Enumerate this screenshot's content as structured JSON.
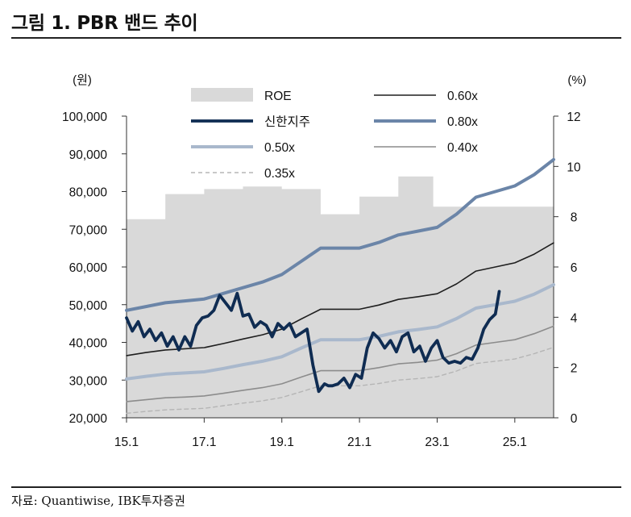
{
  "header": {
    "title": "그림 1. PBR 밴드 추이"
  },
  "footer": {
    "source": "자료: Quantiwise, IBK투자증권"
  },
  "chart_data": {
    "type": "line",
    "title": "그림 1. PBR 밴드 추이",
    "left_axis_unit": "(원)",
    "right_axis_unit": "(%)",
    "ylim": [
      20000,
      100000
    ],
    "y2lim": [
      0,
      12
    ],
    "xlim": [
      2015.0,
      2026.0
    ],
    "x_tick_labels": [
      "15.1",
      "17.1",
      "19.1",
      "21.1",
      "23.1",
      "25.1"
    ],
    "x_tick_positions": [
      2015.0,
      2017.0,
      2019.0,
      2021.0,
      2023.0,
      2025.0
    ],
    "y_tick_labels": [
      "20,000",
      "30,000",
      "40,000",
      "50,000",
      "60,000",
      "70,000",
      "80,000",
      "90,000",
      "100,000"
    ],
    "y2_tick_labels": [
      "0",
      "2",
      "4",
      "6",
      "8",
      "10",
      "12"
    ],
    "legend": {
      "placement": "top",
      "entries": [
        {
          "label": "ROE",
          "key": "roe"
        },
        {
          "label": "0.60x",
          "key": "b060"
        },
        {
          "label": "신한지주",
          "key": "price"
        },
        {
          "label": "0.80x",
          "key": "b080"
        },
        {
          "label": "0.50x",
          "key": "b050"
        },
        {
          "label": "0.40x",
          "key": "b040"
        },
        {
          "label": "0.35x",
          "key": "b035"
        }
      ]
    },
    "series": [
      {
        "key": "roe",
        "name": "ROE",
        "type": "area",
        "axis": "right",
        "color": "#d9d9d9",
        "x": [
          2015.0,
          2016.0,
          2016.0,
          2017.0,
          2017.0,
          2018.0,
          2018.0,
          2019.0,
          2019.0,
          2020.0,
          2020.0,
          2021.0,
          2021.0,
          2022.0,
          2022.0,
          2022.9,
          2022.9,
          2026.0
        ],
        "y": [
          7.9,
          7.9,
          8.9,
          8.9,
          9.1,
          9.1,
          9.2,
          9.2,
          9.1,
          9.1,
          8.1,
          8.1,
          8.8,
          8.8,
          9.6,
          9.6,
          8.4,
          8.4
        ]
      },
      {
        "key": "b080",
        "name": "0.80x",
        "type": "line",
        "axis": "left",
        "color": "#6b85a8",
        "width": 4,
        "x": [
          2015.0,
          2015.5,
          2016.0,
          2016.5,
          2017.0,
          2017.5,
          2018.0,
          2018.5,
          2019.0,
          2019.5,
          2020.0,
          2020.5,
          2021.0,
          2021.5,
          2022.0,
          2022.5,
          2023.0,
          2023.5,
          2024.0,
          2024.5,
          2025.0,
          2025.5,
          2026.0
        ],
        "y": [
          48500,
          49500,
          50500,
          51000,
          51500,
          53000,
          54500,
          56000,
          58000,
          61500,
          65000,
          65000,
          65000,
          66500,
          68500,
          69500,
          70500,
          74000,
          78500,
          80000,
          81500,
          84500,
          88500
        ]
      },
      {
        "key": "b060",
        "name": "0.60x",
        "type": "line",
        "axis": "left",
        "color": "#1f1f1f",
        "width": 1.6,
        "x": [
          2015.0,
          2015.5,
          2016.0,
          2016.5,
          2017.0,
          2017.5,
          2018.0,
          2018.5,
          2019.0,
          2019.5,
          2020.0,
          2020.5,
          2021.0,
          2021.5,
          2022.0,
          2022.5,
          2023.0,
          2023.5,
          2024.0,
          2024.5,
          2025.0,
          2025.5,
          2026.0
        ],
        "y": [
          36500,
          37300,
          38000,
          38300,
          38600,
          39700,
          40900,
          42000,
          43500,
          46200,
          48800,
          48800,
          48800,
          49900,
          51400,
          52100,
          52900,
          55500,
          58900,
          60000,
          61100,
          63400,
          66400
        ]
      },
      {
        "key": "b050",
        "name": "0.50x",
        "type": "line",
        "axis": "left",
        "color": "#a9b8cc",
        "width": 4,
        "x": [
          2015.0,
          2015.5,
          2016.0,
          2016.5,
          2017.0,
          2017.5,
          2018.0,
          2018.5,
          2019.0,
          2019.5,
          2020.0,
          2020.5,
          2021.0,
          2021.5,
          2022.0,
          2022.5,
          2023.0,
          2023.5,
          2024.0,
          2024.5,
          2025.0,
          2025.5,
          2026.0
        ],
        "y": [
          30300,
          31000,
          31600,
          31900,
          32200,
          33100,
          34100,
          35000,
          36200,
          38500,
          40700,
          40700,
          40700,
          41600,
          42800,
          43400,
          44100,
          46300,
          49100,
          50000,
          50900,
          52800,
          55300
        ]
      },
      {
        "key": "b040",
        "name": "0.40x",
        "type": "line",
        "axis": "left",
        "color": "#8c8c8c",
        "width": 1.6,
        "x": [
          2015.0,
          2015.5,
          2016.0,
          2016.5,
          2017.0,
          2017.5,
          2018.0,
          2018.5,
          2019.0,
          2019.5,
          2020.0,
          2020.5,
          2021.0,
          2021.5,
          2022.0,
          2022.5,
          2023.0,
          2023.5,
          2024.0,
          2024.5,
          2025.0,
          2025.5,
          2026.0
        ],
        "y": [
          24300,
          24800,
          25300,
          25500,
          25800,
          26500,
          27300,
          28000,
          29000,
          30800,
          32500,
          32500,
          32500,
          33300,
          34300,
          34700,
          35300,
          37000,
          39300,
          40000,
          40700,
          42300,
          44300
        ]
      },
      {
        "key": "b035",
        "name": "0.35x",
        "type": "line",
        "axis": "left",
        "color": "#b5b5b5",
        "width": 1.4,
        "dashed": true,
        "x": [
          2015.0,
          2015.5,
          2016.0,
          2016.5,
          2017.0,
          2017.5,
          2018.0,
          2018.5,
          2019.0,
          2019.5,
          2020.0,
          2020.5,
          2021.0,
          2021.5,
          2022.0,
          2022.5,
          2023.0,
          2023.5,
          2024.0,
          2024.5,
          2025.0,
          2025.5,
          2026.0
        ],
        "y": [
          21200,
          21700,
          22100,
          22300,
          22500,
          23200,
          23900,
          24500,
          25400,
          26900,
          28500,
          28500,
          28500,
          29100,
          30000,
          30400,
          30900,
          32400,
          34400,
          35000,
          35600,
          37000,
          38700
        ]
      },
      {
        "key": "price",
        "name": "신한지주",
        "type": "line",
        "axis": "left",
        "color": "#0f2c52",
        "width": 3.8,
        "x": [
          2015.0,
          2015.15,
          2015.3,
          2015.45,
          2015.6,
          2015.75,
          2015.9,
          2016.05,
          2016.2,
          2016.35,
          2016.5,
          2016.65,
          2016.8,
          2016.95,
          2017.1,
          2017.25,
          2017.4,
          2017.55,
          2017.7,
          2017.85,
          2018.0,
          2018.15,
          2018.3,
          2018.45,
          2018.6,
          2018.75,
          2018.9,
          2019.05,
          2019.2,
          2019.35,
          2019.5,
          2019.65,
          2019.8,
          2019.95,
          2020.1,
          2020.2,
          2020.3,
          2020.45,
          2020.6,
          2020.75,
          2020.9,
          2021.05,
          2021.2,
          2021.35,
          2021.5,
          2021.65,
          2021.8,
          2021.95,
          2022.1,
          2022.25,
          2022.4,
          2022.55,
          2022.7,
          2022.85,
          2023.0,
          2023.15,
          2023.3,
          2023.45,
          2023.6,
          2023.75,
          2023.9,
          2024.05,
          2024.2,
          2024.35,
          2024.5,
          2024.6
        ],
        "y": [
          46500,
          43000,
          45500,
          41500,
          43500,
          40500,
          42500,
          39000,
          41500,
          38000,
          41500,
          39000,
          44500,
          46500,
          47000,
          48500,
          52500,
          50500,
          48500,
          53000,
          47000,
          47500,
          44000,
          45500,
          44500,
          41500,
          45000,
          43500,
          45000,
          41500,
          42500,
          43500,
          34000,
          27000,
          29000,
          28500,
          28500,
          29000,
          30500,
          28000,
          31500,
          30500,
          38500,
          42500,
          41000,
          38500,
          40500,
          37500,
          41500,
          42500,
          37500,
          39000,
          35000,
          38500,
          40500,
          36000,
          34500,
          35000,
          34500,
          36000,
          35500,
          38500,
          43500,
          46000,
          47500,
          53500
        ]
      }
    ]
  }
}
